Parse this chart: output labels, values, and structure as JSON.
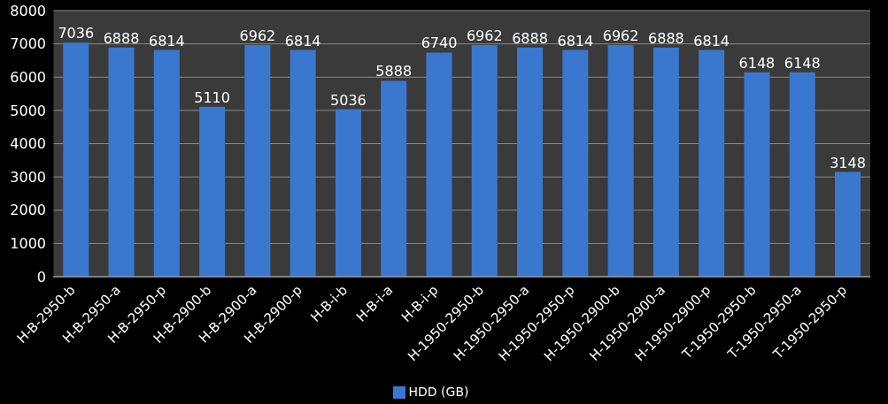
{
  "chart_data": {
    "type": "bar",
    "categories": [
      "H-B-2950-b",
      "H-B-2950-a",
      "H-B-2950-p",
      "H-B-2900-b",
      "H-B-2900-a",
      "H-B-2900-p",
      "H-B-i-b",
      "H-B-i-a",
      "H-B-i-p",
      "H-1950-2950-b",
      "H-1950-2950-a",
      "H-1950-2950-p",
      "H-1950-2900-b",
      "H-1950-2900-a",
      "H-1950-2900-p",
      "T-1950-2950-b",
      "T-1950-2950-a",
      "T-1950-2950-p"
    ],
    "series": [
      {
        "name": "HDD (GB)",
        "color": "#3a78d0",
        "values": [
          7036,
          6888,
          6814,
          5110,
          6962,
          6814,
          5036,
          5888,
          6740,
          6962,
          6888,
          6814,
          6962,
          6888,
          6814,
          6148,
          6148,
          3148
        ]
      }
    ],
    "ylim": [
      0,
      8000
    ],
    "yticks": [
      0,
      1000,
      2000,
      3000,
      4000,
      5000,
      6000,
      7000,
      8000
    ],
    "grid": "y",
    "legend": "bottom",
    "data_labels": true
  }
}
